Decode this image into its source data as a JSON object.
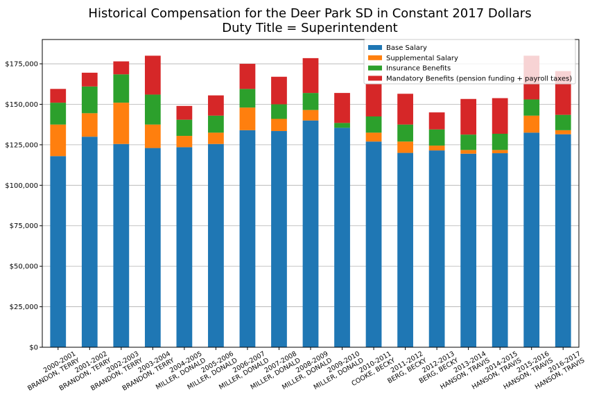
{
  "chart_data": {
    "type": "bar",
    "stacked": true,
    "title": "Historical Compensation for the Deer Park SD in Constant 2017 Dollars",
    "subtitle": "Duty Title = Superintendent",
    "xlabel": "",
    "ylabel": "",
    "ylim": [
      0,
      190000
    ],
    "yticks": [
      {
        "value": 0,
        "label": "$0"
      },
      {
        "value": 25000,
        "label": "$25,000"
      },
      {
        "value": 50000,
        "label": "$50,000"
      },
      {
        "value": 75000,
        "label": "$75,000"
      },
      {
        "value": 100000,
        "label": "$100,000"
      },
      {
        "value": 125000,
        "label": "$125,000"
      },
      {
        "value": 150000,
        "label": "$150,000"
      },
      {
        "value": 175000,
        "label": "$175,000"
      }
    ],
    "grid": "y",
    "legend_position": "top-right",
    "categories": [
      [
        "2000-2001",
        "BRANDON, TERRY"
      ],
      [
        "2001-2002",
        "BRANDON, TERRY"
      ],
      [
        "2002-2003",
        "BRANDON, TERRY"
      ],
      [
        "2003-2004",
        "BRANDON, TERRY"
      ],
      [
        "2004-2005",
        "MILLER, DONALD"
      ],
      [
        "2005-2006",
        "MILLER, DONALD"
      ],
      [
        "2006-2007",
        "MILLER, DONALD"
      ],
      [
        "2007-2008",
        "MILLER, DONALD"
      ],
      [
        "2008-2009",
        "MILLER, DONALD"
      ],
      [
        "2009-2010",
        "MILLER, DONALD"
      ],
      [
        "2010-2011",
        "COOKE, BECKY"
      ],
      [
        "2011-2012",
        "BERG, BECKY"
      ],
      [
        "2012-2013",
        "BERG, BECKY"
      ],
      [
        "2013-2014",
        "HANSON, TRAVIS"
      ],
      [
        "2014-2015",
        "HANSON, TRAVIS"
      ],
      [
        "2015-2016",
        "HANSON, TRAVIS"
      ],
      [
        "2016-2017",
        "HANSON, TRAVIS"
      ]
    ],
    "series": [
      {
        "name": "Base Salary",
        "color": "#1f77b4",
        "values": [
          118000,
          130000,
          125500,
          123000,
          123500,
          125500,
          134000,
          133500,
          140000,
          135500,
          127000,
          120000,
          121500,
          119500,
          119800,
          132500,
          131500
        ]
      },
      {
        "name": "Supplemental Salary",
        "color": "#ff7f0e",
        "values": [
          19500,
          14500,
          25500,
          14500,
          7000,
          7000,
          14000,
          7500,
          6500,
          0,
          5500,
          7000,
          3000,
          2300,
          2000,
          10500,
          2500
        ]
      },
      {
        "name": "Insurance Benefits",
        "color": "#2ca02c",
        "values": [
          13500,
          16500,
          17500,
          18500,
          10000,
          10500,
          11500,
          9000,
          10500,
          3000,
          10000,
          10500,
          10000,
          9500,
          10000,
          10000,
          9500
        ]
      },
      {
        "name": "Mandatory Benefits (pension funding + payroll taxes)",
        "color": "#d62728",
        "values": [
          8500,
          8500,
          8000,
          24000,
          8500,
          12500,
          15500,
          17000,
          21500,
          18500,
          20000,
          19000,
          10500,
          22000,
          22000,
          27000,
          27000
        ]
      }
    ]
  }
}
